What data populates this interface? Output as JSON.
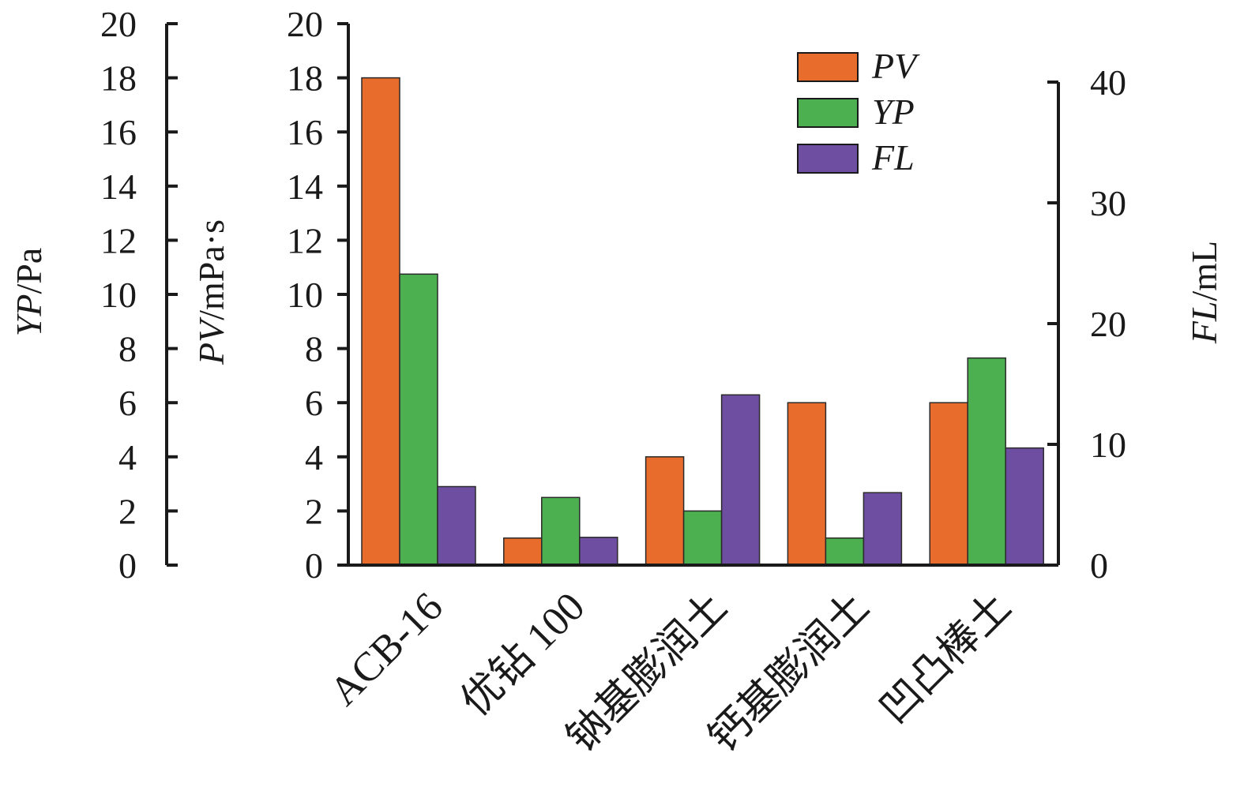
{
  "chart_data": {
    "type": "bar",
    "categories": [
      "ACB-16",
      "优钻 100",
      "钠基膨润土",
      "钙基膨润土",
      "凹凸棒土"
    ],
    "series": [
      {
        "name": "PV",
        "axis": "PV",
        "color": "#e86c2c",
        "values": [
          18,
          1,
          4,
          6,
          6
        ]
      },
      {
        "name": "YP",
        "axis": "YP",
        "color": "#4caf50",
        "values": [
          10.75,
          2.5,
          2,
          1,
          7.65
        ]
      },
      {
        "name": "FL",
        "axis": "FL",
        "color": "#6e4ea1",
        "values": [
          6.5,
          2.3,
          14.1,
          6.0,
          9.7
        ]
      }
    ],
    "axes": {
      "YP": {
        "label_italic": "YP",
        "label_unit": "/Pa",
        "ylim": [
          0,
          20
        ],
        "ticks": [
          0,
          2,
          4,
          6,
          8,
          10,
          12,
          14,
          16,
          18,
          20
        ]
      },
      "PV": {
        "label_italic": "PV",
        "label_unit": "/mPa·s",
        "ylim": [
          0,
          20
        ],
        "ticks": [
          0,
          2,
          4,
          6,
          8,
          10,
          12,
          14,
          16,
          18,
          20
        ]
      },
      "FL": {
        "label_italic": "FL",
        "label_unit": "/mL",
        "ylim": [
          0,
          40
        ],
        "ticks": [
          0,
          10,
          20,
          30,
          40
        ]
      }
    },
    "legend": {
      "position": "top-right",
      "entries": [
        "PV",
        "YP",
        "FL"
      ]
    }
  }
}
